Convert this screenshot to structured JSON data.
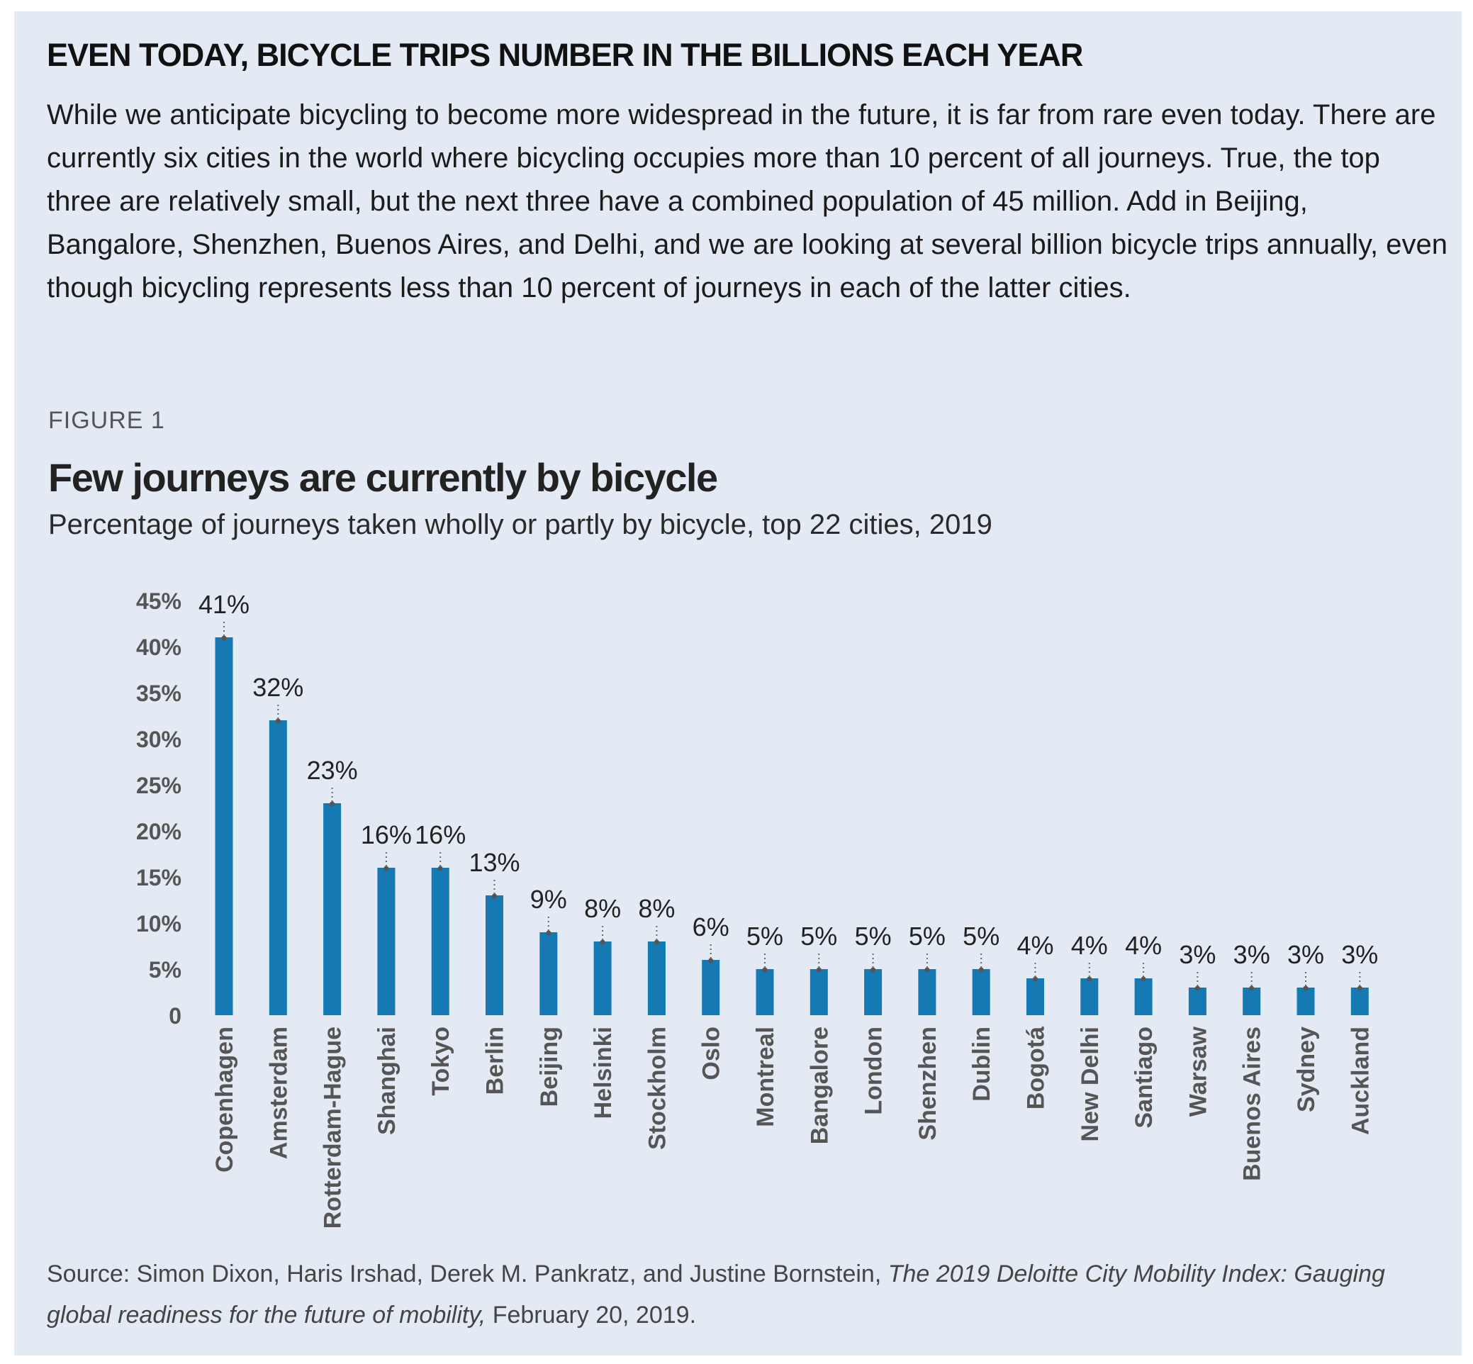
{
  "heading": "EVEN TODAY, BICYCLE TRIPS NUMBER IN THE BILLIONS EACH YEAR",
  "intro": "While we anticipate bicycling to become more widespread in the future, it is far from rare even today. There are currently six cities in the world where bicycling occupies more than 10 percent of all journeys. True, the top three are relatively small, but the next three have a combined population of 45 million. Add in Beijing, Bangalore, Shenzhen, Buenos Aires, and Delhi, and we are looking at several billion bicycle trips annually, even though bicycling represents less than 10 percent of journeys in each of the latter cities.",
  "figure": {
    "label": "FIGURE 1"
  },
  "source": {
    "prefix": "Source: Simon Dixon, Haris Irshad, Derek M. Pankratz, and Justine Bornstein,",
    "title": "The 2019 Deloitte City Mobility Index: Gauging global readiness for the future of mobility,",
    "date": "February 20, 2019."
  },
  "colors": {
    "bar": "#1579b3",
    "panel": "#e4eaf4",
    "axis_text": "#555555"
  },
  "chart_data": {
    "type": "bar",
    "title": "Few journeys are currently by bicycle",
    "subtitle": "Percentage of journeys taken wholly or partly by bicycle, top 22 cities, 2019",
    "xlabel": "",
    "ylabel": "",
    "ylim": [
      0,
      45
    ],
    "yticks": [
      "0",
      "5%",
      "10%",
      "15%",
      "20%",
      "25%",
      "30%",
      "35%",
      "40%",
      "45%"
    ],
    "grid": false,
    "categories": [
      "Copenhagen",
      "Amsterdam",
      "Rotterdam-Hague",
      "Shanghai",
      "Tokyo",
      "Berlin",
      "Beijing",
      "Helsinki",
      "Stockholm",
      "Oslo",
      "Montreal",
      "Bangalore",
      "London",
      "Shenzhen",
      "Dublin",
      "Bogotá",
      "New Delhi",
      "Santiago",
      "Warsaw",
      "Buenos Aires",
      "Sydney",
      "Auckland"
    ],
    "values": [
      41,
      32,
      23,
      16,
      16,
      13,
      9,
      8,
      8,
      6,
      5,
      5,
      5,
      5,
      5,
      4,
      4,
      4,
      3,
      3,
      3,
      3
    ],
    "data_labels": [
      "41%",
      "32%",
      "23%",
      "16%",
      "16%",
      "13%",
      "9%",
      "8%",
      "8%",
      "6%",
      "5%",
      "5%",
      "5%",
      "5%",
      "5%",
      "4%",
      "4%",
      "4%",
      "3%",
      "3%",
      "3%",
      "3%"
    ]
  }
}
